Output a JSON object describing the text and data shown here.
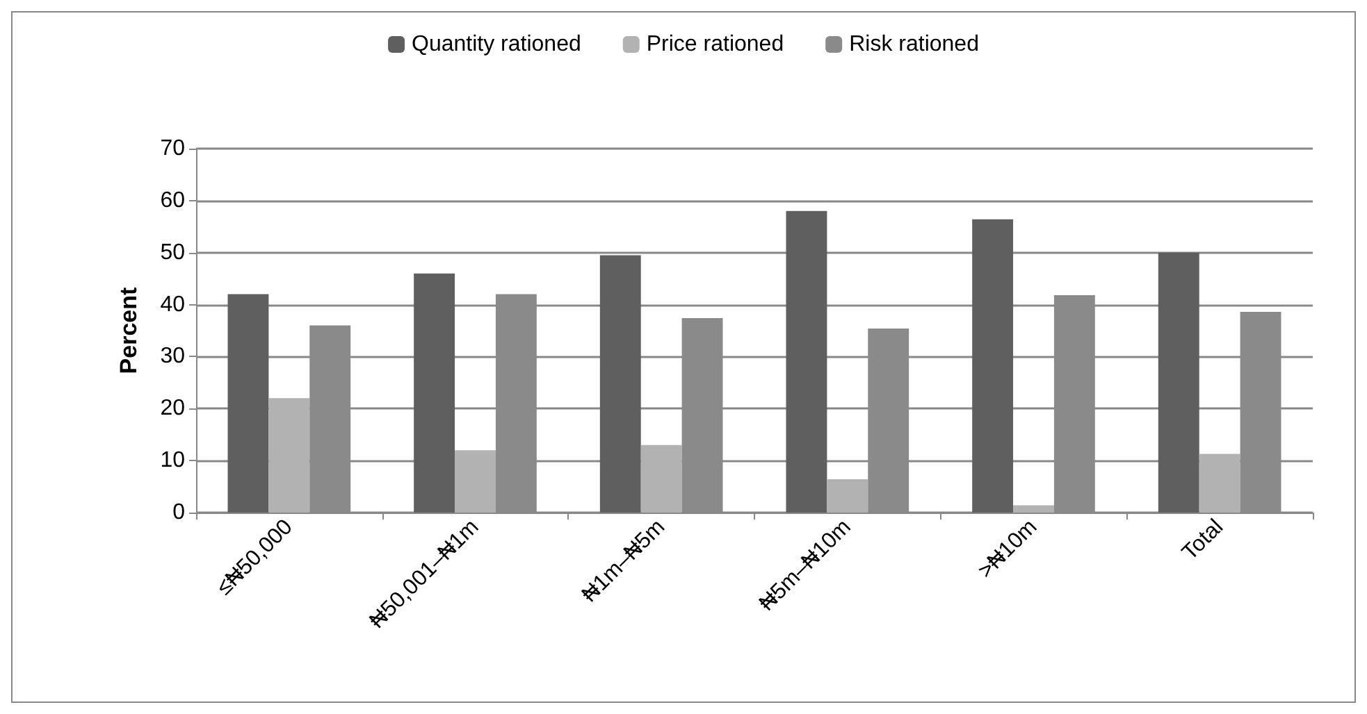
{
  "chart_data": {
    "type": "bar",
    "ylabel": "Percent",
    "categories": [
      "≤₦50,000",
      "₦50,001–₦1m",
      "₦1m–₦5m",
      "₦5m–₦10m",
      ">₦10m",
      "Total"
    ],
    "series": [
      {
        "name": "Quantity rationed",
        "color": "#5f5f5f",
        "values": [
          42,
          46,
          49.5,
          58,
          56.4,
          50
        ]
      },
      {
        "name": "Price rationed",
        "color": "#b2b2b2",
        "values": [
          22,
          12,
          13,
          6.4,
          1.4,
          11.3
        ]
      },
      {
        "name": "Risk rationed",
        "color": "#8a8a8a",
        "values": [
          36,
          42,
          37.4,
          35.4,
          41.8,
          38.6
        ]
      }
    ],
    "ylim": [
      0,
      70
    ],
    "yticks": [
      0,
      10,
      20,
      30,
      40,
      50,
      60,
      70
    ],
    "grid": "y",
    "legend": "top"
  }
}
